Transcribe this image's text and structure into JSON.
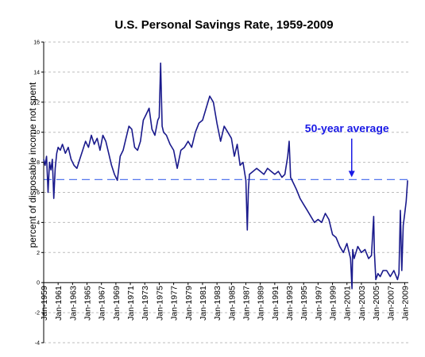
{
  "chart_data": {
    "type": "line",
    "title": "U.S. Personal Savings Rate, 1959-2009",
    "ylabel": "percent of disposable income not spent",
    "xlabel": "",
    "ylim": [
      -4,
      16
    ],
    "yticks": [
      -4,
      -2,
      0,
      2,
      4,
      6,
      8,
      10,
      12,
      14,
      16
    ],
    "xlim": [
      1959.0,
      2009.5
    ],
    "xtick_labels": [
      {
        "year": 1959,
        "label": "Jan-1959"
      },
      {
        "year": 1961,
        "label": "Jan-1961"
      },
      {
        "year": 1963,
        "label": "Jan-1963"
      },
      {
        "year": 1965,
        "label": "Jan-1965"
      },
      {
        "year": 1967,
        "label": "Jan-1967"
      },
      {
        "year": 1969,
        "label": "Jan-1969"
      },
      {
        "year": 1971,
        "label": "Jan-1971"
      },
      {
        "year": 1973,
        "label": "Jan-1973"
      },
      {
        "year": 1975,
        "label": "Jan-1975"
      },
      {
        "year": 1977,
        "label": "Jan-1977"
      },
      {
        "year": 1979,
        "label": "Jan-1979"
      },
      {
        "year": 1981,
        "label": "Jan-1981"
      },
      {
        "year": 1983,
        "label": "Jan-1983"
      },
      {
        "year": 1985,
        "label": "Jan-1985"
      },
      {
        "year": 1987,
        "label": "Jan-1987"
      },
      {
        "year": 1989,
        "label": "Jan-1989"
      },
      {
        "year": 1991,
        "label": "Jan-1991"
      },
      {
        "year": 1993,
        "label": "Jan-1993"
      },
      {
        "year": 1995,
        "label": "Jan-1995"
      },
      {
        "year": 1997,
        "label": "Jan-1997"
      },
      {
        "year": 1999,
        "label": "Jan-1999"
      },
      {
        "year": 2001,
        "label": "Jan-2001"
      },
      {
        "year": 2003,
        "label": "Jan-2003"
      },
      {
        "year": 2005,
        "label": "Jan-2005"
      },
      {
        "year": 2007,
        "label": "Jan-2007"
      },
      {
        "year": 2009,
        "label": "Jan-2009"
      }
    ],
    "grid": {
      "horizontal": true,
      "vertical": false
    },
    "series": [
      {
        "color": "#1a1a8c",
        "x": [
          1959.0,
          1959.2,
          1959.4,
          1959.6,
          1959.8,
          1960.0,
          1960.2,
          1960.4,
          1960.6,
          1960.8,
          1961.0,
          1961.3,
          1961.6,
          1962.0,
          1962.4,
          1962.8,
          1963.2,
          1963.6,
          1964.0,
          1964.4,
          1964.8,
          1965.2,
          1965.6,
          1966.0,
          1966.4,
          1966.8,
          1967.2,
          1967.6,
          1968.0,
          1968.4,
          1968.8,
          1969.2,
          1969.6,
          1970.0,
          1970.4,
          1970.8,
          1971.2,
          1971.6,
          1972.0,
          1972.4,
          1972.8,
          1973.2,
          1973.6,
          1974.0,
          1974.4,
          1974.8,
          1975.0,
          1975.2,
          1975.4,
          1975.6,
          1976.0,
          1976.5,
          1977.0,
          1977.5,
          1978.0,
          1978.5,
          1979.0,
          1979.5,
          1980.0,
          1980.5,
          1981.0,
          1981.5,
          1982.0,
          1982.5,
          1983.0,
          1983.5,
          1984.0,
          1984.5,
          1985.0,
          1985.4,
          1985.8,
          1986.2,
          1986.6,
          1987.0,
          1987.2,
          1987.35,
          1987.5,
          1988.0,
          1988.5,
          1989.0,
          1989.5,
          1990.0,
          1990.5,
          1991.0,
          1991.5,
          1992.0,
          1992.4,
          1992.8,
          1993.0,
          1993.2,
          1993.6,
          1994.0,
          1994.5,
          1995.0,
          1995.5,
          1996.0,
          1996.5,
          1997.0,
          1997.5,
          1998.0,
          1998.5,
          1999.0,
          1999.5,
          2000.0,
          2000.5,
          2001.0,
          2001.5,
          2001.7,
          2001.8,
          2002.0,
          2002.5,
          2003.0,
          2003.5,
          2004.0,
          2004.4,
          2004.7,
          2004.8,
          2005.0,
          2005.3,
          2005.6,
          2006.0,
          2006.5,
          2007.0,
          2007.5,
          2008.0,
          2008.2,
          2008.4,
          2008.6,
          2008.8,
          2009.0,
          2009.2,
          2009.4
        ],
        "y": [
          8.2,
          7.8,
          8.4,
          6.0,
          8.0,
          7.5,
          8.2,
          5.6,
          7.6,
          8.6,
          9.0,
          8.8,
          9.2,
          8.6,
          9.0,
          8.2,
          7.8,
          7.6,
          8.2,
          8.8,
          9.4,
          9.0,
          9.8,
          9.2,
          9.6,
          8.8,
          9.8,
          9.4,
          8.6,
          7.8,
          7.2,
          6.8,
          8.4,
          8.8,
          9.6,
          10.4,
          10.2,
          9.0,
          8.8,
          9.4,
          10.8,
          11.2,
          11.6,
          10.2,
          9.8,
          10.8,
          11.0,
          14.6,
          10.4,
          10.0,
          9.8,
          9.2,
          8.8,
          7.6,
          8.8,
          9.0,
          9.4,
          9.0,
          10.0,
          10.6,
          10.8,
          11.6,
          12.4,
          12.0,
          10.6,
          9.4,
          10.4,
          10.0,
          9.6,
          8.4,
          9.2,
          7.8,
          8.0,
          6.8,
          3.5,
          6.2,
          7.2,
          7.4,
          7.6,
          7.4,
          7.2,
          7.6,
          7.4,
          7.2,
          7.4,
          7.0,
          7.2,
          8.4,
          9.4,
          7.0,
          6.6,
          6.2,
          5.6,
          5.2,
          4.8,
          4.4,
          4.0,
          4.2,
          4.0,
          4.6,
          4.2,
          3.2,
          3.0,
          2.4,
          2.0,
          2.6,
          1.6,
          -0.4,
          2.2,
          1.6,
          2.4,
          2.0,
          2.2,
          1.6,
          1.8,
          4.4,
          2.0,
          0.2,
          0.6,
          0.4,
          0.8,
          0.8,
          0.4,
          0.8,
          0.2,
          0.6,
          4.8,
          0.8,
          3.8,
          4.6,
          5.4,
          6.8
        ]
      }
    ],
    "reference_line": {
      "value": 6.85,
      "style": "dashed",
      "color": "#5577ee"
    },
    "annotations": [
      {
        "text": "50-year average",
        "x": 2001.0,
        "y": 10.0,
        "color": "#1a1ae6"
      }
    ]
  }
}
